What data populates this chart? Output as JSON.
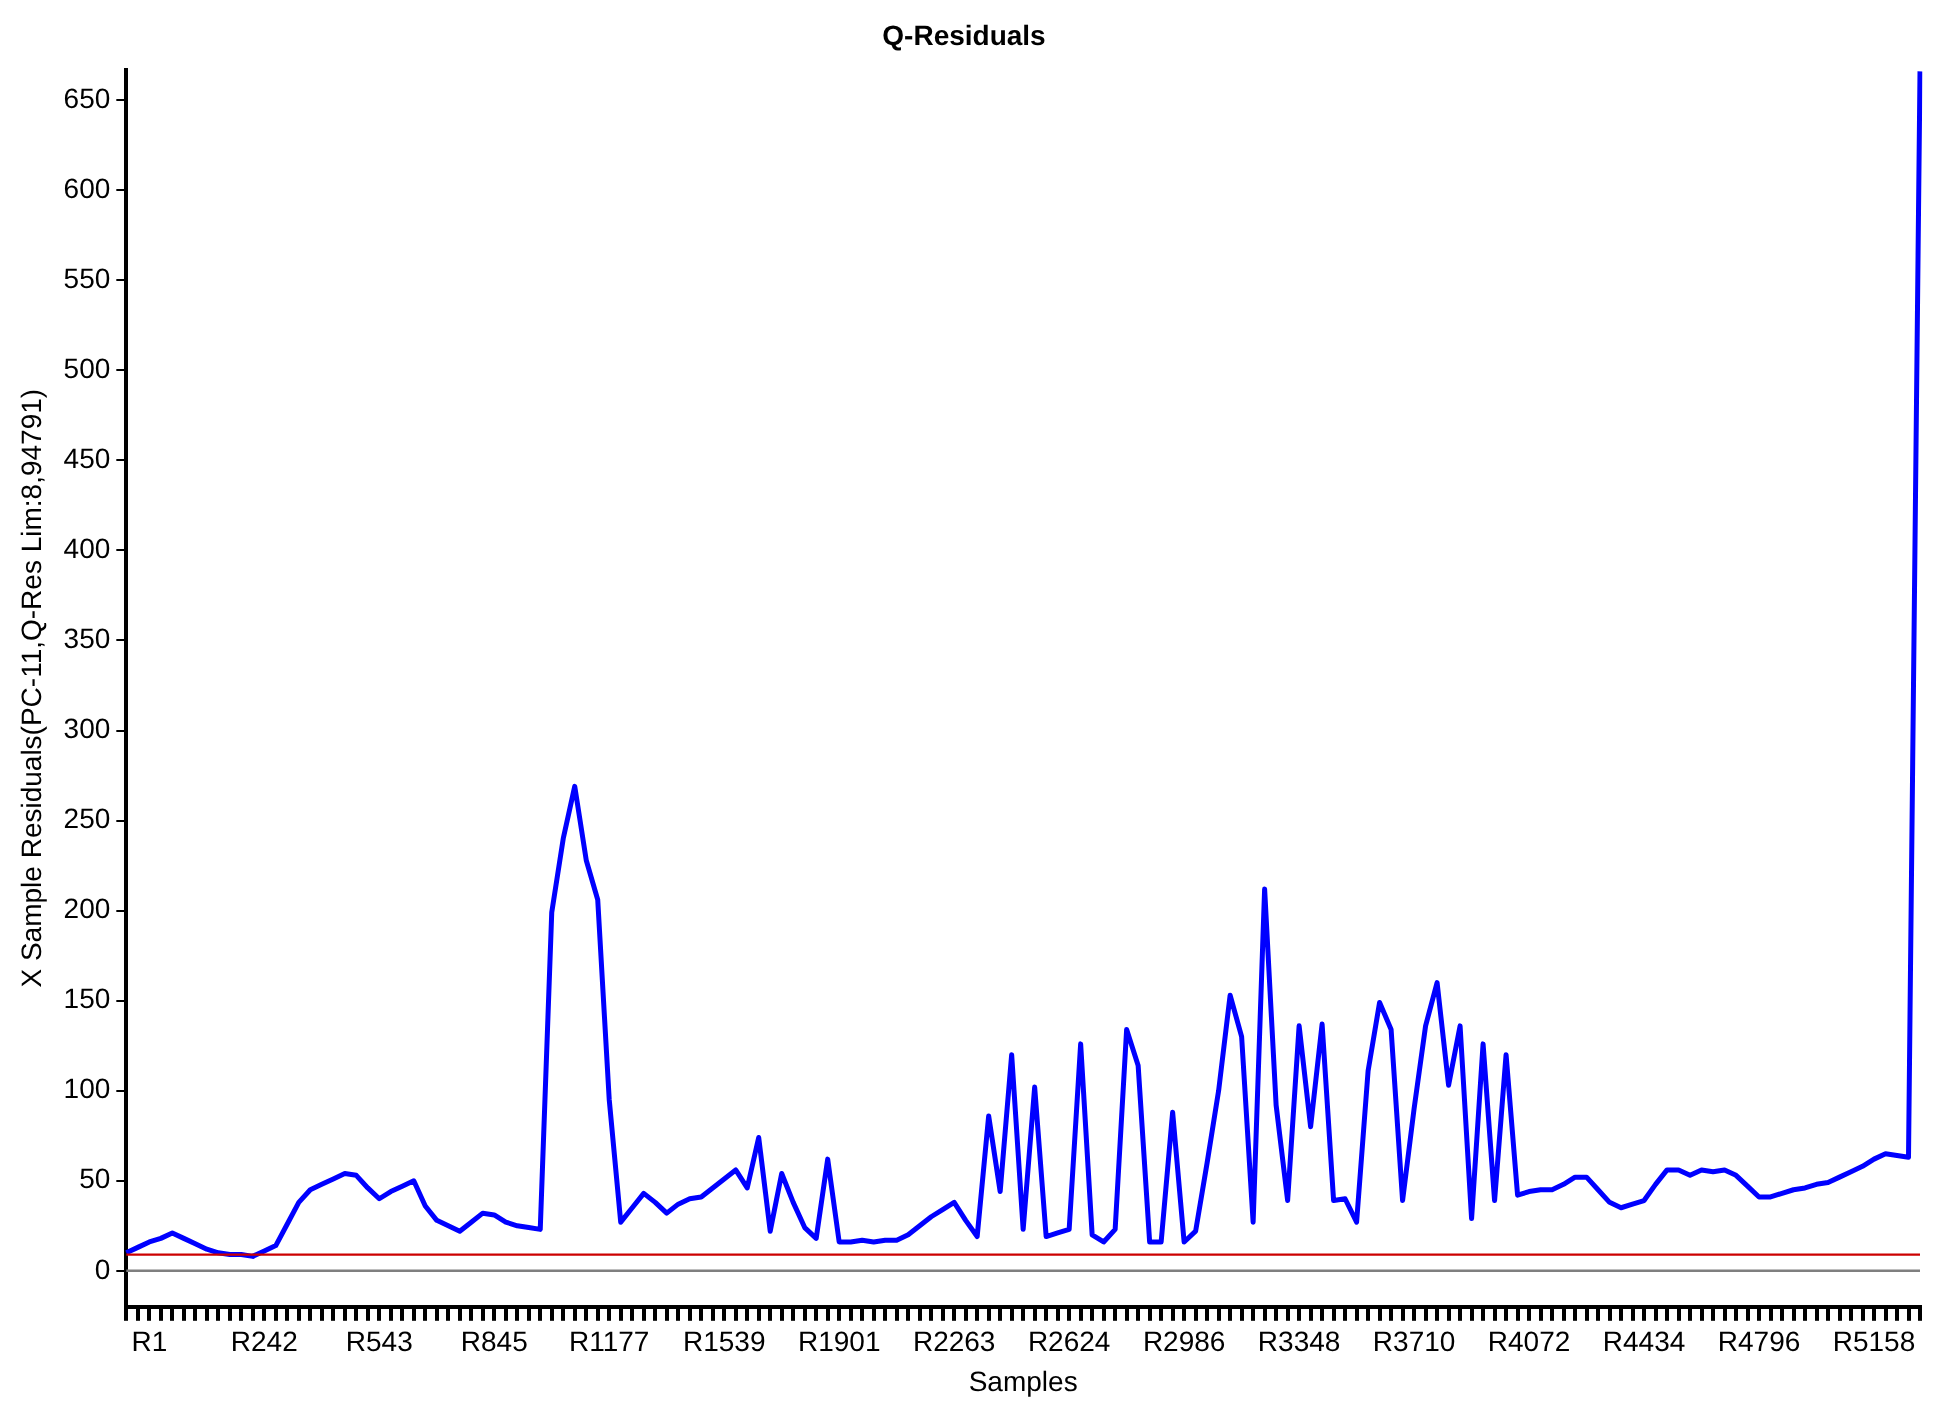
{
  "chart_data": {
    "type": "line",
    "title": "Q-Residuals",
    "xlabel": "Samples",
    "ylabel": "X Sample Residuals(PC-11,Q-Res Lim:8,94791)",
    "categories": [
      null,
      null,
      "R1",
      null,
      null,
      null,
      null,
      null,
      null,
      null,
      null,
      null,
      "R242",
      null,
      null,
      null,
      null,
      null,
      null,
      null,
      null,
      null,
      "R543",
      null,
      null,
      null,
      null,
      null,
      null,
      null,
      null,
      null,
      "R845",
      null,
      null,
      null,
      null,
      null,
      null,
      null,
      null,
      null,
      "R1177",
      null,
      null,
      null,
      null,
      null,
      null,
      null,
      null,
      null,
      "R1539",
      null,
      null,
      null,
      null,
      null,
      null,
      null,
      null,
      null,
      "R1901",
      null,
      null,
      null,
      null,
      null,
      null,
      null,
      null,
      null,
      "R2263",
      null,
      null,
      null,
      null,
      null,
      null,
      null,
      null,
      null,
      "R2624",
      null,
      null,
      null,
      null,
      null,
      null,
      null,
      null,
      null,
      "R2986",
      null,
      null,
      null,
      null,
      null,
      null,
      null,
      null,
      null,
      "R3348",
      null,
      null,
      null,
      null,
      null,
      null,
      null,
      null,
      null,
      "R3710",
      null,
      null,
      null,
      null,
      null,
      null,
      null,
      null,
      null,
      "R4072",
      null,
      null,
      null,
      null,
      null,
      null,
      null,
      null,
      null,
      "R4434",
      null,
      null,
      null,
      null,
      null,
      null,
      null,
      null,
      null,
      "R4796",
      null,
      null,
      null,
      null,
      null,
      null,
      null,
      null,
      null,
      "R5158",
      null,
      null,
      null,
      null
    ],
    "series": [
      {
        "color": "#0000ff",
        "values": [
          10,
          13,
          16,
          18,
          21,
          18,
          15,
          12,
          10,
          9,
          9,
          8,
          11,
          14,
          26,
          38,
          45,
          48,
          51,
          54,
          53,
          46,
          40,
          44,
          47,
          50,
          36,
          28,
          25,
          22,
          27,
          32,
          31,
          27,
          25,
          24,
          23,
          199,
          240,
          269,
          228,
          206,
          95,
          27,
          35,
          43,
          38,
          32,
          37,
          40,
          41,
          46,
          51,
          56,
          46,
          74,
          22,
          54,
          38,
          24,
          18,
          62,
          16,
          16,
          17,
          16,
          17,
          17,
          20,
          25,
          30,
          34,
          38,
          28,
          19,
          86,
          44,
          120,
          23,
          102,
          19,
          21,
          23,
          126,
          20,
          16,
          23,
          134,
          114,
          16,
          16,
          88,
          16,
          22,
          60,
          100,
          153,
          130,
          27,
          212,
          92,
          39,
          136,
          80,
          137,
          39,
          40,
          27,
          111,
          149,
          134,
          39,
          90,
          136,
          160,
          103,
          136,
          29,
          126,
          39,
          120,
          42,
          44,
          45,
          45,
          48,
          52,
          52,
          45,
          38,
          35,
          37,
          39,
          48,
          56,
          56,
          53,
          56,
          55,
          56,
          53,
          47,
          41,
          41,
          43,
          45,
          46,
          48,
          49,
          52,
          55,
          58,
          62,
          65,
          64,
          63,
          666
        ]
      }
    ],
    "ylim": [
      -20,
      667
    ],
    "yticks": [
      0,
      50,
      100,
      150,
      200,
      250,
      300,
      350,
      400,
      450,
      500,
      550,
      600,
      650
    ],
    "ref_lines": [
      {
        "axis": "y",
        "value": 8.94791,
        "color": "#cc0000"
      },
      {
        "axis": "y",
        "value": 0,
        "color": "#7f7f7f"
      }
    ],
    "grid": false,
    "legend": false,
    "marker": "none",
    "line_style": "solid"
  }
}
